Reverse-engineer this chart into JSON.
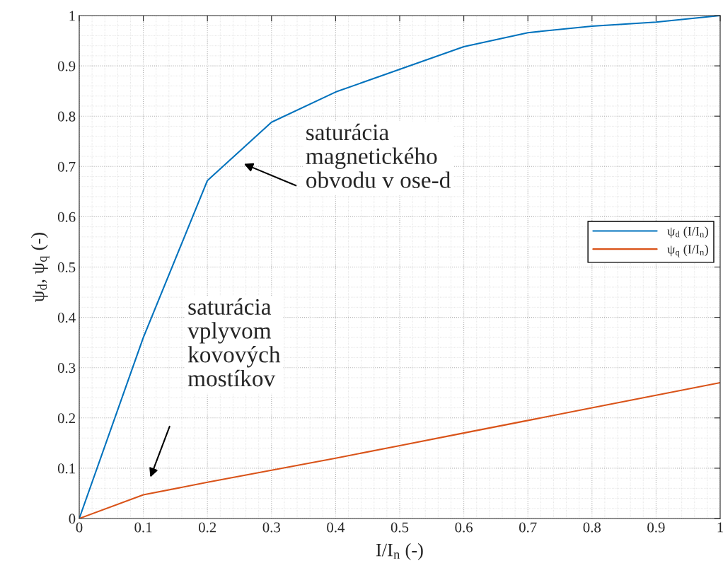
{
  "chart_data": {
    "type": "line",
    "xlabel": "I/I$_{n}$ (-)",
    "ylabel": "ψ$_{d}$, ψ$_{q}$ (-)",
    "x": [
      0,
      0.1,
      0.2,
      0.3,
      0.4,
      0.5,
      0.6,
      0.7,
      0.8,
      0.9,
      1.0
    ],
    "series": [
      {
        "name": "ψ$_{d}$ (I/I$_{n}$)",
        "color": "#0072bd",
        "values": [
          0,
          0.36,
          0.672,
          0.788,
          0.848,
          0.893,
          0.938,
          0.966,
          0.979,
          0.987,
          1.0
        ]
      },
      {
        "name": "ψ$_{q}$ (I/I$_{n}$)",
        "color": "#d95319",
        "values": [
          0,
          0.047,
          0.072,
          0.096,
          0.12,
          0.145,
          0.17,
          0.195,
          0.22,
          0.245,
          0.27
        ]
      }
    ],
    "annotations": [
      "saturácia\nmagnetického\nobvodu v ose-d",
      "saturácia\nvplyvom\nkovových\nmostíkov"
    ],
    "xlim": [
      0,
      1
    ],
    "ylim": [
      0,
      1
    ],
    "xticks": [
      0,
      0.1,
      0.2,
      0.3,
      0.4,
      0.5,
      0.6,
      0.7,
      0.8,
      0.9,
      1
    ],
    "yticks": [
      0,
      0.1,
      0.2,
      0.3,
      0.4,
      0.5,
      0.6,
      0.7,
      0.8,
      0.9,
      1
    ],
    "grid": true,
    "legend": "right",
    "line_style": "solid",
    "marker": "none"
  }
}
